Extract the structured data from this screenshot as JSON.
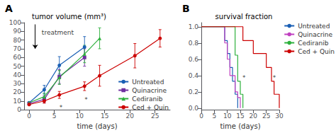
{
  "chart_data": [
    {
      "type": "line",
      "panel_label": "A",
      "title": "tumor volume (mm³)",
      "xlabel": "time (days)",
      "xlim": [
        -1,
        28
      ],
      "ylim": [
        0,
        100
      ],
      "xticks": [
        0,
        5,
        10,
        15,
        20,
        25
      ],
      "yticks": [
        0,
        10,
        20,
        30,
        40,
        50,
        60,
        70,
        80,
        90,
        100
      ],
      "grid": false,
      "legend": "lower right",
      "series": [
        {
          "name": "Untreated",
          "color": "#1a5fb4",
          "marker": "circle",
          "x": [
            0,
            3,
            6,
            11
          ],
          "values": [
            8,
            23,
            51,
            72
          ],
          "yerr": [
            1.0,
            5.0,
            10.0,
            12.0
          ]
        },
        {
          "name": "Quinacrine",
          "color": "#7030a0",
          "marker": "square",
          "x": [
            0,
            3,
            6,
            11
          ],
          "values": [
            7,
            12,
            38,
            60
          ],
          "yerr": [
            0.8,
            4.0,
            8.0,
            10.0
          ]
        },
        {
          "name": "Cediranib",
          "color": "#2db03c",
          "marker": "triangle",
          "x": [
            0,
            3,
            6,
            11,
            14
          ],
          "values": [
            8,
            15,
            37,
            64,
            82
          ],
          "yerr": [
            1.0,
            4.0,
            8.0,
            10.0,
            12.0
          ]
        },
        {
          "name": "Ced + Quin",
          "color": "#cc0000",
          "marker": "circle",
          "x": [
            0,
            3,
            6,
            11,
            14,
            21,
            26
          ],
          "values": [
            6,
            10,
            17,
            27,
            39,
            62,
            82
          ],
          "yerr": [
            0.5,
            2.5,
            4.0,
            5.0,
            12.0,
            14.0,
            10.0
          ]
        }
      ],
      "annotations": [
        {
          "x": 2.5,
          "y": 92,
          "text": "treatment"
        },
        {
          "x": 6.0,
          "y": 6.0,
          "text": "*"
        },
        {
          "x": 11.0,
          "y": 15.0,
          "text": "*"
        }
      ],
      "arrows": [
        {
          "x": 1.2,
          "y_start": 98,
          "y_end": 70
        }
      ]
    },
    {
      "type": "line",
      "panel_label": "B",
      "title": "survival fraction",
      "xlabel": "time (days)",
      "xlim": [
        0,
        30
      ],
      "ylim": [
        -0.02,
        1.05
      ],
      "xticks": [
        0,
        5,
        10,
        15,
        20,
        25,
        30
      ],
      "yticks": [
        {
          "value": 0.0,
          "label": "0.0"
        },
        0.2,
        0.4,
        0.6,
        0.8,
        {
          "value": 1.0,
          "label": "1.0"
        }
      ],
      "grid": false,
      "legend": "upper right",
      "series": [
        {
          "name": "Untreated",
          "color": "#1a5fb4",
          "x": [
            0,
            9,
            9,
            10,
            10,
            11,
            11,
            12,
            12,
            13,
            13,
            14,
            14
          ],
          "values": [
            1.0,
            1.0,
            0.83,
            0.83,
            0.67,
            0.67,
            0.5,
            0.5,
            0.33,
            0.33,
            0.17,
            0.17,
            0.0
          ]
        },
        {
          "name": "Quinacrine",
          "color": "#c040c0",
          "x": [
            0,
            9,
            9,
            10,
            10,
            11,
            11,
            13,
            13,
            14,
            14,
            15,
            15
          ],
          "values": [
            1.0,
            1.0,
            0.8,
            0.8,
            0.6,
            0.6,
            0.4,
            0.4,
            0.2,
            0.2,
            0.13,
            0.13,
            0.0
          ]
        },
        {
          "name": "Cediranib",
          "color": "#2db03c",
          "x": [
            0,
            13,
            13,
            14,
            14,
            15,
            15,
            16,
            16
          ],
          "values": [
            1.0,
            1.0,
            0.65,
            0.65,
            0.33,
            0.33,
            0.17,
            0.17,
            0.0
          ]
        },
        {
          "name": "Ced + Quin",
          "color": "#cc0000",
          "x": [
            0,
            16,
            16,
            20,
            20,
            25,
            25,
            27,
            27,
            28,
            28,
            30,
            30
          ],
          "values": [
            1.0,
            1.0,
            0.83,
            0.83,
            0.67,
            0.67,
            0.5,
            0.5,
            0.33,
            0.33,
            0.17,
            0.17,
            0.0
          ]
        }
      ],
      "annotations": [
        {
          "x": 15.8,
          "y": 0.41,
          "text": "*"
        },
        {
          "x": 27.5,
          "y": 0.41,
          "text": "*"
        }
      ]
    }
  ]
}
